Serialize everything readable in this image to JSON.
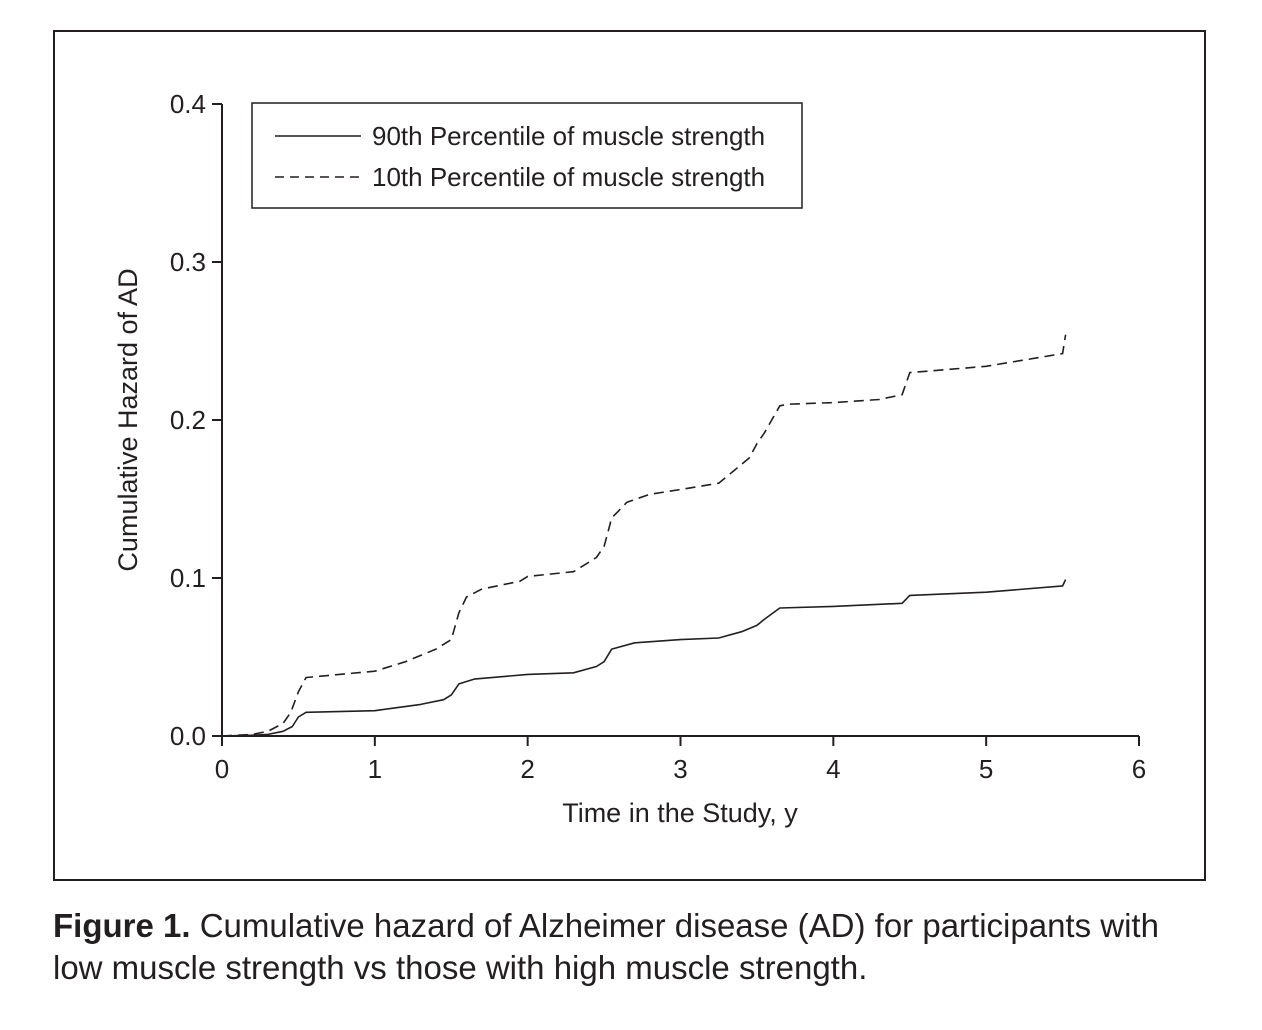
{
  "chart_data": {
    "type": "line",
    "xlabel": "Time in the Study, y",
    "ylabel": "Cumulative Hazard of AD",
    "xlim": [
      0,
      6
    ],
    "ylim": [
      0,
      0.4
    ],
    "x_ticks": [
      "0",
      "1",
      "2",
      "3",
      "4",
      "5",
      "6"
    ],
    "y_ticks": [
      "0.0",
      "0.1",
      "0.2",
      "0.3",
      "0.4"
    ],
    "grid": false,
    "legend_position": "top-left",
    "series": [
      {
        "name": "90th Percentile of muscle strength",
        "style": "solid",
        "color": "#231f20",
        "points": [
          [
            0,
            0
          ],
          [
            0.2,
            0.0005
          ],
          [
            0.3,
            0.001
          ],
          [
            0.4,
            0.003
          ],
          [
            0.46,
            0.006
          ],
          [
            0.5,
            0.012
          ],
          [
            0.55,
            0.015
          ],
          [
            1.0,
            0.016
          ],
          [
            1.3,
            0.02
          ],
          [
            1.45,
            0.023
          ],
          [
            1.5,
            0.026
          ],
          [
            1.55,
            0.033
          ],
          [
            1.65,
            0.036
          ],
          [
            2.0,
            0.039
          ],
          [
            2.3,
            0.04
          ],
          [
            2.45,
            0.044
          ],
          [
            2.5,
            0.047
          ],
          [
            2.55,
            0.055
          ],
          [
            2.7,
            0.059
          ],
          [
            3.0,
            0.061
          ],
          [
            3.25,
            0.062
          ],
          [
            3.4,
            0.066
          ],
          [
            3.5,
            0.07
          ],
          [
            3.55,
            0.074
          ],
          [
            3.65,
            0.081
          ],
          [
            4.0,
            0.082
          ],
          [
            4.45,
            0.084
          ],
          [
            4.5,
            0.089
          ],
          [
            5.0,
            0.091
          ],
          [
            5.5,
            0.095
          ],
          [
            5.52,
            0.099
          ]
        ]
      },
      {
        "name": "10th Percentile of muscle strength",
        "style": "dashed",
        "color": "#231f20",
        "points": [
          [
            0,
            0
          ],
          [
            0.2,
            0.001
          ],
          [
            0.3,
            0.003
          ],
          [
            0.4,
            0.008
          ],
          [
            0.45,
            0.015
          ],
          [
            0.5,
            0.028
          ],
          [
            0.55,
            0.037
          ],
          [
            1.0,
            0.041
          ],
          [
            1.2,
            0.047
          ],
          [
            1.4,
            0.055
          ],
          [
            1.5,
            0.061
          ],
          [
            1.55,
            0.078
          ],
          [
            1.6,
            0.088
          ],
          [
            1.7,
            0.093
          ],
          [
            1.95,
            0.098
          ],
          [
            2.0,
            0.101
          ],
          [
            2.3,
            0.104
          ],
          [
            2.45,
            0.113
          ],
          [
            2.5,
            0.12
          ],
          [
            2.55,
            0.138
          ],
          [
            2.65,
            0.148
          ],
          [
            2.8,
            0.153
          ],
          [
            3.0,
            0.156
          ],
          [
            3.25,
            0.16
          ],
          [
            3.35,
            0.168
          ],
          [
            3.45,
            0.176
          ],
          [
            3.5,
            0.185
          ],
          [
            3.55,
            0.192
          ],
          [
            3.65,
            0.209
          ],
          [
            3.7,
            0.21
          ],
          [
            4.0,
            0.211
          ],
          [
            4.3,
            0.213
          ],
          [
            4.45,
            0.216
          ],
          [
            4.5,
            0.23
          ],
          [
            5.0,
            0.234
          ],
          [
            5.5,
            0.242
          ],
          [
            5.52,
            0.254
          ]
        ]
      }
    ]
  },
  "caption": {
    "label": "Figure 1.",
    "text": "Cumulative hazard of Alzheimer disease (AD) for participants with low muscle strength vs those with high muscle strength."
  }
}
